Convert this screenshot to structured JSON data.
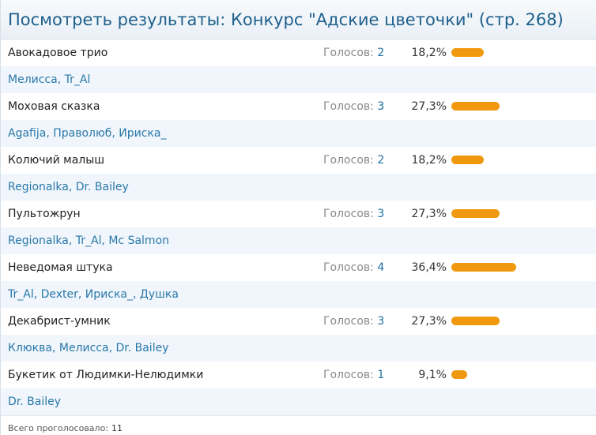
{
  "header": {
    "title": "Посмотреть результаты: Конкурс \"Адские цветочки\" (стр. 268)"
  },
  "poll": {
    "votes_label": "Голосов:",
    "bar_color": "#f0990f",
    "options": [
      {
        "label": "Авокадовое трио",
        "votes": "2",
        "percent_text": "18,2%",
        "percent": 18.2,
        "voters": "Мелисса, Tr_Al"
      },
      {
        "label": "Моховая сказка",
        "votes": "3",
        "percent_text": "27,3%",
        "percent": 27.3,
        "voters": "Agafija, Праволюб, Ириска_"
      },
      {
        "label": "Колючий малыш",
        "votes": "2",
        "percent_text": "18,2%",
        "percent": 18.2,
        "voters": "Regionalka, Dr. Bailey"
      },
      {
        "label": "Пультожрун",
        "votes": "3",
        "percent_text": "27,3%",
        "percent": 27.3,
        "voters": "Regionalka, Tr_Al, Mc Salmon"
      },
      {
        "label": "Неведомая штука",
        "votes": "4",
        "percent_text": "36,4%",
        "percent": 36.4,
        "voters": "Tr_Al, Dexter, Ириска_, Душка"
      },
      {
        "label": "Декабрист-умник",
        "votes": "3",
        "percent_text": "27,3%",
        "percent": 27.3,
        "voters": "Клюква, Мелисса, Dr. Bailey"
      },
      {
        "label": "Букетик от Людимки-Нелюдимки",
        "votes": "1",
        "percent_text": "9,1%",
        "percent": 9.1,
        "voters": "Dr. Bailey"
      }
    ]
  },
  "footer": {
    "total_label": "Всего проголосовало:",
    "total": "11"
  }
}
